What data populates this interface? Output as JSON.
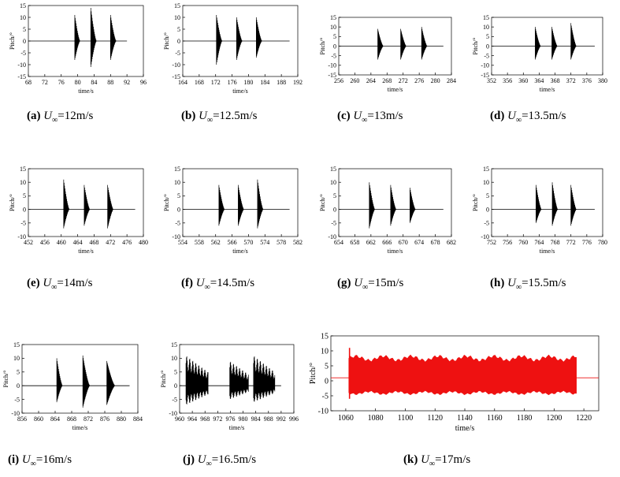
{
  "colors": {
    "signal": "#000000",
    "signal_k": "#ee1111",
    "axis": "#000000",
    "background": "#ffffff"
  },
  "axis_labels": {
    "x": "time/s",
    "y": "Pitch/°"
  },
  "chart_data": [
    {
      "type": "line",
      "id": "a",
      "caption": {
        "letter": "(a)",
        "symbol": "U",
        "subscript": "∞",
        "value": "=12m/s"
      },
      "xlabel": "time/s",
      "ylabel": "Pitch/°",
      "xlim": [
        68,
        96
      ],
      "ylim": [
        -15,
        15
      ],
      "xticks": [
        "68",
        "72",
        "76",
        "80",
        "84",
        "88",
        "92",
        "96"
      ],
      "yticks": [
        "-15",
        "-10",
        "-5",
        "0",
        "5",
        "10",
        "15"
      ],
      "baseline": [
        68,
        92
      ],
      "bursts": [
        {
          "start": 79.3,
          "end": 80.6,
          "max": 11,
          "min": -8
        },
        {
          "start": 83.2,
          "end": 84.6,
          "max": 14,
          "min": -11
        },
        {
          "start": 88.0,
          "end": 89.4,
          "max": 11,
          "min": -8
        }
      ]
    },
    {
      "type": "line",
      "id": "b",
      "caption": {
        "letter": "(b)",
        "symbol": "U",
        "subscript": "∞",
        "value": "=12.5m/s"
      },
      "xlabel": "time/s",
      "ylabel": "Pitch/°",
      "xlim": [
        164,
        192
      ],
      "ylim": [
        -15,
        15
      ],
      "xticks": [
        "164",
        "168",
        "172",
        "176",
        "180",
        "184",
        "188",
        "192"
      ],
      "yticks": [
        "-15",
        "-10",
        "-5",
        "0",
        "5",
        "10",
        "15"
      ],
      "baseline": [
        164,
        190
      ],
      "bursts": [
        {
          "start": 172.2,
          "end": 173.6,
          "max": 11,
          "min": -10
        },
        {
          "start": 177.1,
          "end": 178.5,
          "max": 10,
          "min": -8
        },
        {
          "start": 181.9,
          "end": 183.3,
          "max": 10,
          "min": -7
        }
      ]
    },
    {
      "type": "line",
      "id": "c",
      "caption": {
        "letter": "(c)",
        "symbol": "U",
        "subscript": "∞",
        "value": "=13m/s"
      },
      "xlabel": "time/s",
      "ylabel": "Pitch/°",
      "xlim": [
        256,
        284
      ],
      "ylim": [
        -15,
        15
      ],
      "xticks": [
        "256",
        "260",
        "264",
        "268",
        "272",
        "276",
        "280",
        "284"
      ],
      "yticks": [
        "-15",
        "-10",
        "-5",
        "0",
        "5",
        "10",
        "15"
      ],
      "baseline": [
        256,
        282
      ],
      "bursts": [
        {
          "start": 265.7,
          "end": 267.1,
          "max": 9,
          "min": -7
        },
        {
          "start": 271.4,
          "end": 272.8,
          "max": 9,
          "min": -7
        },
        {
          "start": 276.6,
          "end": 278.0,
          "max": 10,
          "min": -7
        }
      ]
    },
    {
      "type": "line",
      "id": "d",
      "caption": {
        "letter": "(d)",
        "symbol": "U",
        "subscript": "∞",
        "value": "=13.5m/s"
      },
      "xlabel": "time/s",
      "ylabel": "Pitch/°",
      "xlim": [
        352,
        380
      ],
      "ylim": [
        -15,
        15
      ],
      "xticks": [
        "352",
        "356",
        "360",
        "364",
        "368",
        "372",
        "376",
        "380"
      ],
      "yticks": [
        "-15",
        "-10",
        "-5",
        "0",
        "5",
        "10",
        "15"
      ],
      "baseline": [
        352,
        378
      ],
      "bursts": [
        {
          "start": 363.0,
          "end": 364.4,
          "max": 10,
          "min": -7
        },
        {
          "start": 367.2,
          "end": 368.6,
          "max": 10,
          "min": -7
        },
        {
          "start": 372.0,
          "end": 373.4,
          "max": 12,
          "min": -7
        }
      ]
    },
    {
      "type": "line",
      "id": "e",
      "caption": {
        "letter": "(e)",
        "symbol": "U",
        "subscript": "∞",
        "value": "=14m/s"
      },
      "xlabel": "time/s",
      "ylabel": "Pitch/°",
      "xlim": [
        452,
        480
      ],
      "ylim": [
        -10,
        15
      ],
      "xticks": [
        "452",
        "456",
        "460",
        "464",
        "468",
        "472",
        "476",
        "480"
      ],
      "yticks": [
        "-10",
        "-5",
        "0",
        "5",
        "10",
        "15"
      ],
      "baseline": [
        452,
        478
      ],
      "bursts": [
        {
          "start": 460.6,
          "end": 462.0,
          "max": 11,
          "min": -7
        },
        {
          "start": 465.6,
          "end": 467.0,
          "max": 9,
          "min": -6
        },
        {
          "start": 471.3,
          "end": 472.7,
          "max": 9,
          "min": -7
        }
      ]
    },
    {
      "type": "line",
      "id": "f",
      "caption": {
        "letter": "(f)",
        "symbol": "U",
        "subscript": "∞",
        "value": "=14.5m/s"
      },
      "xlabel": "time/s",
      "ylabel": "Pitch/°",
      "xlim": [
        554,
        582
      ],
      "ylim": [
        -10,
        15
      ],
      "xticks": [
        "554",
        "558",
        "562",
        "566",
        "570",
        "574",
        "578",
        "582"
      ],
      "yticks": [
        "-10",
        "-5",
        "0",
        "5",
        "10",
        "15"
      ],
      "baseline": [
        554,
        580
      ],
      "bursts": [
        {
          "start": 562.8,
          "end": 564.2,
          "max": 9,
          "min": -6
        },
        {
          "start": 567.5,
          "end": 568.9,
          "max": 9,
          "min": -6
        },
        {
          "start": 572.2,
          "end": 573.6,
          "max": 11,
          "min": -7
        }
      ]
    },
    {
      "type": "line",
      "id": "g",
      "caption": {
        "letter": "(g)",
        "symbol": "U",
        "subscript": "∞",
        "value": "=15m/s"
      },
      "xlabel": "time/s",
      "ylabel": "Pitch/°",
      "xlim": [
        654,
        682
      ],
      "ylim": [
        -10,
        15
      ],
      "xticks": [
        "654",
        "658",
        "662",
        "666",
        "670",
        "674",
        "678",
        "682"
      ],
      "yticks": [
        "-10",
        "-5",
        "0",
        "5",
        "10",
        "15"
      ],
      "baseline": [
        654,
        680
      ],
      "bursts": [
        {
          "start": 661.6,
          "end": 663.0,
          "max": 10,
          "min": -7
        },
        {
          "start": 666.9,
          "end": 668.3,
          "max": 9,
          "min": -6
        },
        {
          "start": 671.7,
          "end": 673.1,
          "max": 8,
          "min": -5
        }
      ]
    },
    {
      "type": "line",
      "id": "h",
      "caption": {
        "letter": "(h)",
        "symbol": "U",
        "subscript": "∞",
        "value": "=15.5m/s"
      },
      "xlabel": "time/s",
      "ylabel": "Pitch/°",
      "xlim": [
        752,
        780
      ],
      "ylim": [
        -10,
        15
      ],
      "xticks": [
        "752",
        "756",
        "760",
        "764",
        "768",
        "772",
        "776",
        "780"
      ],
      "yticks": [
        "-10",
        "-5",
        "0",
        "5",
        "10",
        "15"
      ],
      "baseline": [
        752,
        778
      ],
      "bursts": [
        {
          "start": 763.2,
          "end": 764.6,
          "max": 9,
          "min": -5
        },
        {
          "start": 767.3,
          "end": 768.7,
          "max": 10,
          "min": -6
        },
        {
          "start": 772.0,
          "end": 773.4,
          "max": 9,
          "min": -6
        }
      ]
    },
    {
      "type": "line",
      "id": "i",
      "caption": {
        "letter": "(i)",
        "symbol": "U",
        "subscript": "∞",
        "value": "=16m/s"
      },
      "xlabel": "time/s",
      "ylabel": "Pitch/°",
      "xlim": [
        856,
        884
      ],
      "ylim": [
        -10,
        15
      ],
      "xticks": [
        "856",
        "860",
        "864",
        "868",
        "872",
        "876",
        "880",
        "884"
      ],
      "yticks": [
        "-10",
        "-5",
        "0",
        "5",
        "10",
        "15"
      ],
      "baseline": [
        856,
        882
      ],
      "bursts": [
        {
          "start": 864.4,
          "end": 865.8,
          "max": 10,
          "min": -6
        },
        {
          "start": 870.7,
          "end": 872.4,
          "max": 11,
          "min": -8
        },
        {
          "start": 876.5,
          "end": 878.5,
          "max": 9,
          "min": -7
        }
      ]
    },
    {
      "type": "line",
      "id": "j",
      "caption": {
        "letter": "(j)",
        "symbol": "U",
        "subscript": "∞",
        "value": "=16.5m/s"
      },
      "xlabel": "time/s",
      "ylabel": "Pitch/°",
      "xlim": [
        960,
        996
      ],
      "ylim": [
        -10,
        15
      ],
      "xticks": [
        "960",
        "964",
        "968",
        "972",
        "976",
        "980",
        "984",
        "988",
        "992",
        "996"
      ],
      "yticks": [
        "-10",
        "-5",
        "0",
        "5",
        "10",
        "15"
      ],
      "baseline": [
        960,
        992
      ],
      "bursts": [
        {
          "start": 962.0,
          "end": 969.0,
          "max": 11,
          "min": -7,
          "sustained": true
        },
        {
          "start": 975.8,
          "end": 981.8,
          "max": 9,
          "min": -5,
          "sustained": true
        },
        {
          "start": 983.3,
          "end": 990.0,
          "max": 11,
          "min": -6,
          "sustained": true
        }
      ]
    },
    {
      "type": "line",
      "id": "k",
      "caption": {
        "letter": "(k)",
        "symbol": "U",
        "subscript": "∞",
        "value": "=17m/s"
      },
      "xlabel": "time/s",
      "ylabel": "Pitch/°",
      "xlim": [
        1050,
        1230
      ],
      "ylim": [
        -10,
        15
      ],
      "xticks": [
        "1060",
        "1080",
        "1100",
        "1120",
        "1140",
        "1160",
        "1180",
        "1200",
        "1220"
      ],
      "yticks": [
        "-10",
        "-5",
        "0",
        "5",
        "10",
        "15"
      ],
      "baseline": [
        1050,
        1230
      ],
      "bursts": [
        {
          "start": 1062.0,
          "end": 1215.0,
          "max": 7.5,
          "min": -4,
          "peak": 11,
          "trough": -6,
          "continuous": true
        }
      ]
    }
  ]
}
